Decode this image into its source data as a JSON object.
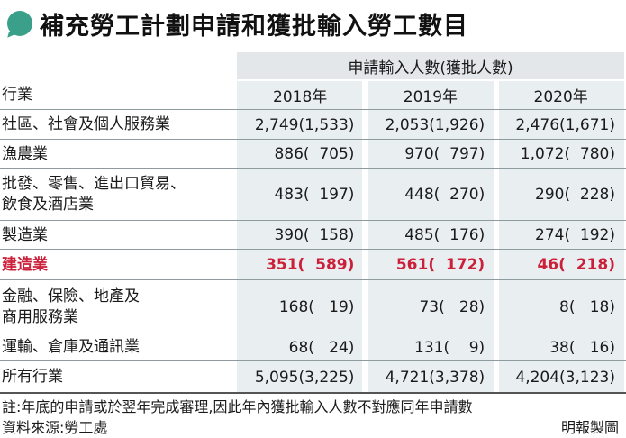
{
  "title": "補充勞工計劃申請和獲批輸入勞工數目",
  "header_group": "申請輸入人數(獲批人數)",
  "columns": {
    "label": "行業",
    "years": [
      "2018年",
      "2019年",
      "2020年"
    ]
  },
  "rows": [
    {
      "label": [
        "社區、社會及個人服務業"
      ],
      "values": [
        "2,749(1,533)",
        "2,053(1,926)",
        "2,476(1,671)"
      ],
      "highlight": false
    },
    {
      "label": [
        "漁農業"
      ],
      "values": [
        "886(  705)",
        "970(  797)",
        "1,072(  780)"
      ],
      "highlight": false
    },
    {
      "label": [
        "批發、零售、進出口貿易、",
        "飲食及酒店業"
      ],
      "values": [
        "483(  197)",
        "448(  270)",
        "290(  228)"
      ],
      "highlight": false
    },
    {
      "label": [
        "製造業"
      ],
      "values": [
        "390(  158)",
        "485(  176)",
        "274(  192)"
      ],
      "highlight": false
    },
    {
      "label": [
        "建造業"
      ],
      "values": [
        "351(  589)",
        "561(  172)",
        "46(  218)"
      ],
      "highlight": true
    },
    {
      "label": [
        "金融、保險、地產及",
        "商用服務業"
      ],
      "values": [
        "168(   19)",
        "73(   28)",
        "8(   18)"
      ],
      "highlight": false
    },
    {
      "label": [
        "運輸、倉庫及通訊業"
      ],
      "values": [
        "68(   24)",
        "131(    9)",
        "38(   16)"
      ],
      "highlight": false
    },
    {
      "label": [
        "所有行業"
      ],
      "values": [
        "5,095(3,225)",
        "4,721(3,378)",
        "4,204(3,123)"
      ],
      "highlight": false
    }
  ],
  "note": "註:年底的申請或於翌年完成審理,因此年內獲批輸入人數不對應同年申請數",
  "source": "資料來源:勞工處",
  "credit": "明報製圖",
  "colors": {
    "accent": "#3aa08a",
    "highlight": "#cc1f3a",
    "band": "#e9eef0"
  },
  "icons": {
    "title_marker": "speech-bubble-icon"
  }
}
